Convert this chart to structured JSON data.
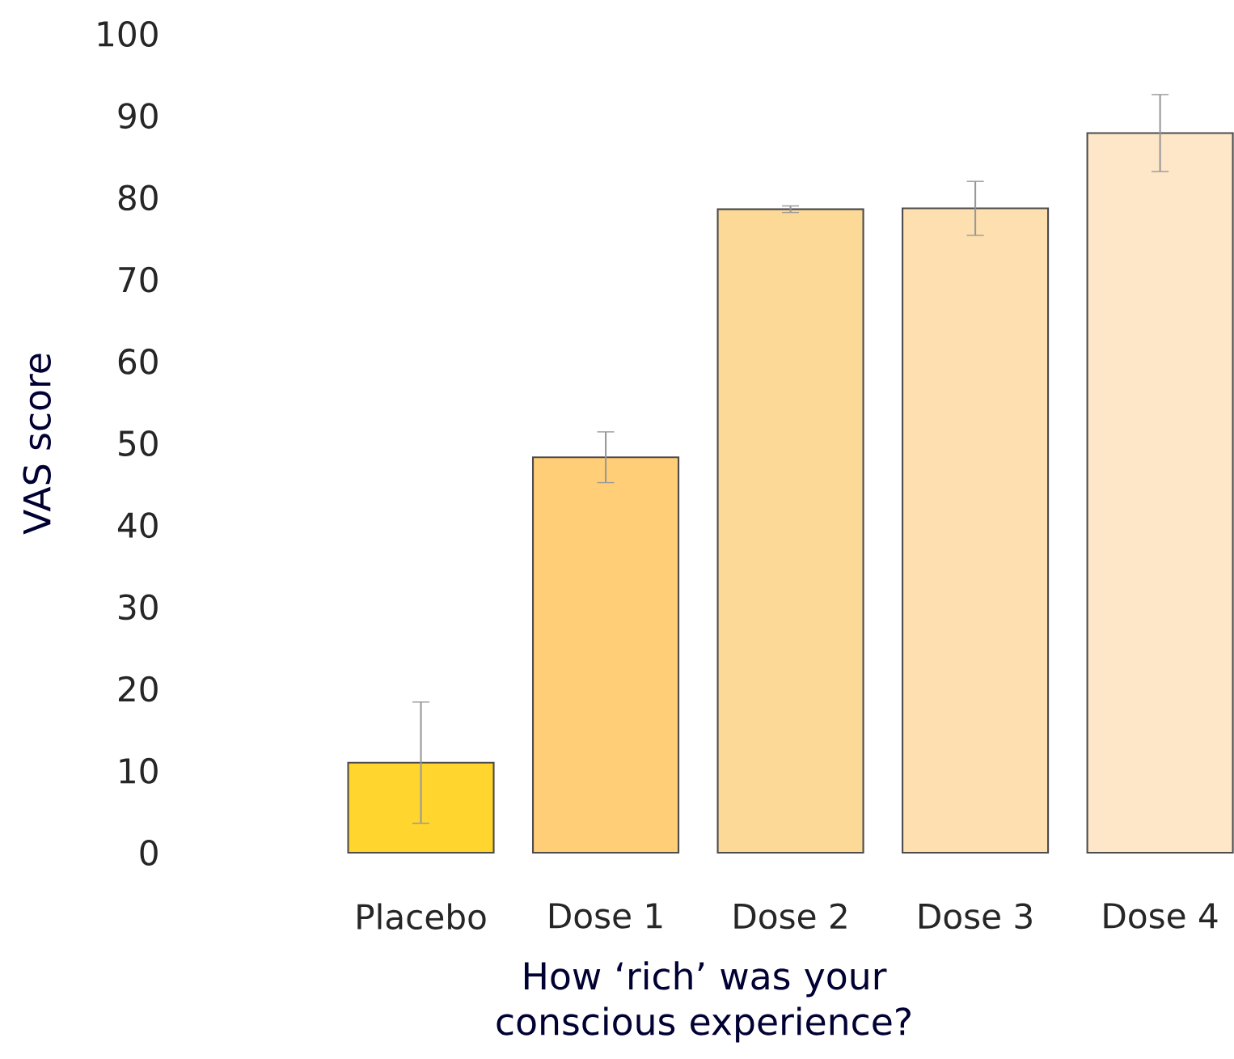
{
  "chart_data": {
    "type": "bar",
    "xlabel": "How ‘rich’ was your conscious experience?",
    "ylabel": "VAS score",
    "categories": [
      "Placebo",
      "Dose 1",
      "Dose 2",
      "Dose 3",
      "Dose 4"
    ],
    "values": [
      11.0,
      48.3,
      78.6,
      78.7,
      87.9
    ],
    "errors": [
      7.4,
      3.1,
      0.4,
      3.3,
      4.7
    ],
    "colors": [
      "#ffd52e",
      "#ffce77",
      "#fdd998",
      "#fedfb0",
      "#fee6c8"
    ],
    "ylim": [
      0,
      100
    ],
    "yticks": [
      0,
      10,
      20,
      30,
      40,
      50,
      60,
      70,
      80,
      90,
      100
    ]
  }
}
